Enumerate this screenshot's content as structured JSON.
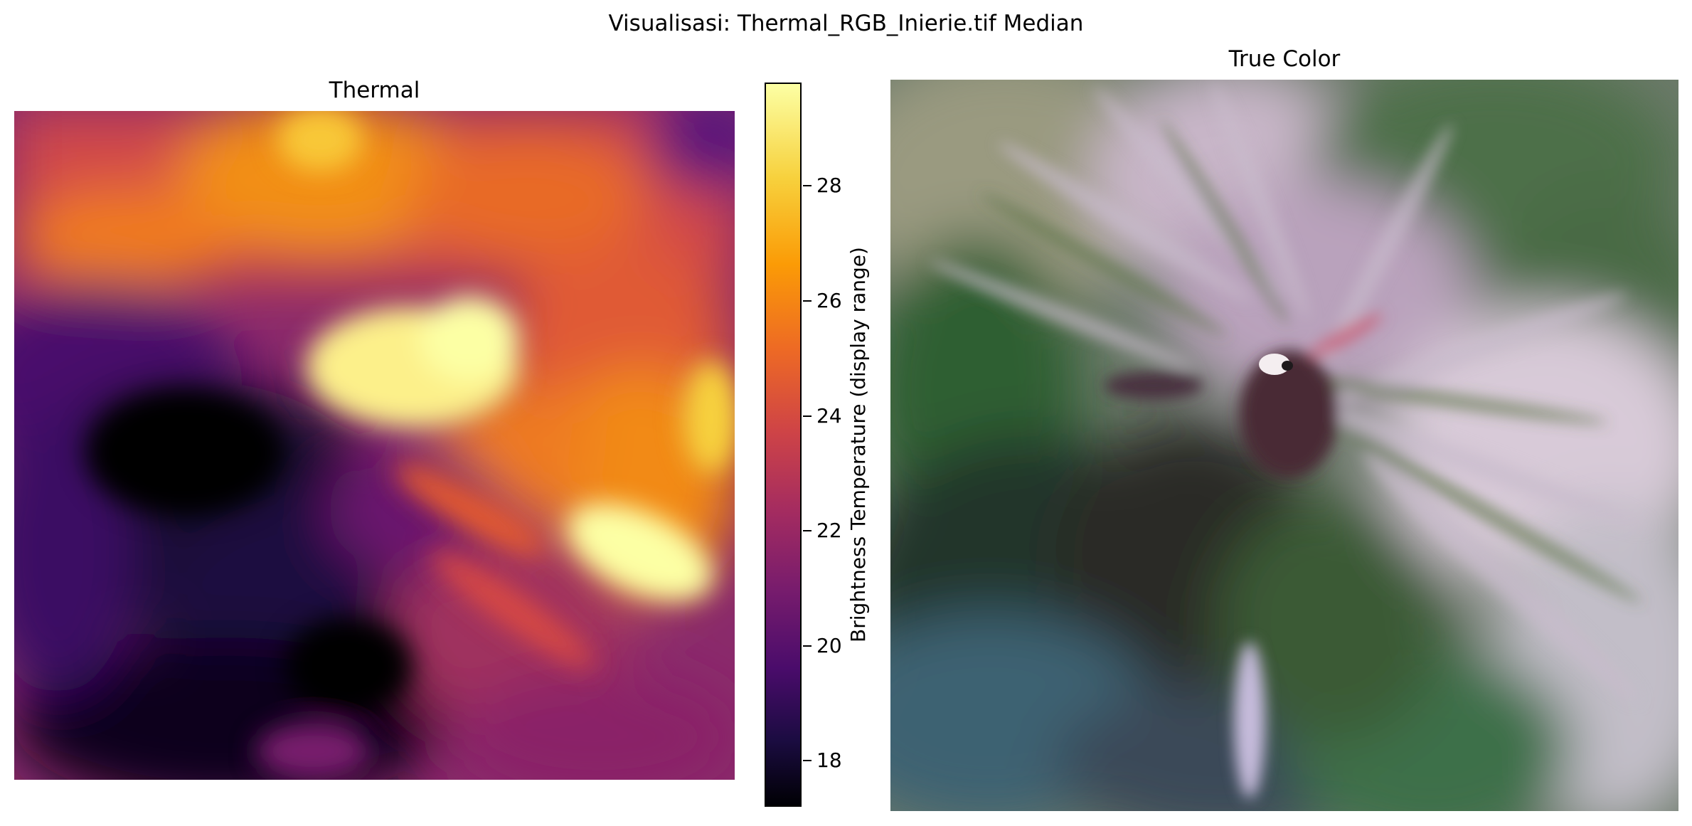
{
  "figure": {
    "title": "Visualisasi: Thermal_RGB_Inierie.tif Median"
  },
  "thermal_panel": {
    "title": "Thermal",
    "colormap": "inferno"
  },
  "colorbar": {
    "label": "Brightness Temperature (display range)",
    "ticks": [
      {
        "value": 18,
        "label": "18"
      },
      {
        "value": 20,
        "label": "20"
      },
      {
        "value": 22,
        "label": "22"
      },
      {
        "value": 24,
        "label": "24"
      },
      {
        "value": 26,
        "label": "26"
      },
      {
        "value": 28,
        "label": "28"
      }
    ],
    "range": [
      17.2,
      29.8
    ]
  },
  "rgb_panel": {
    "title": "True Color"
  }
}
